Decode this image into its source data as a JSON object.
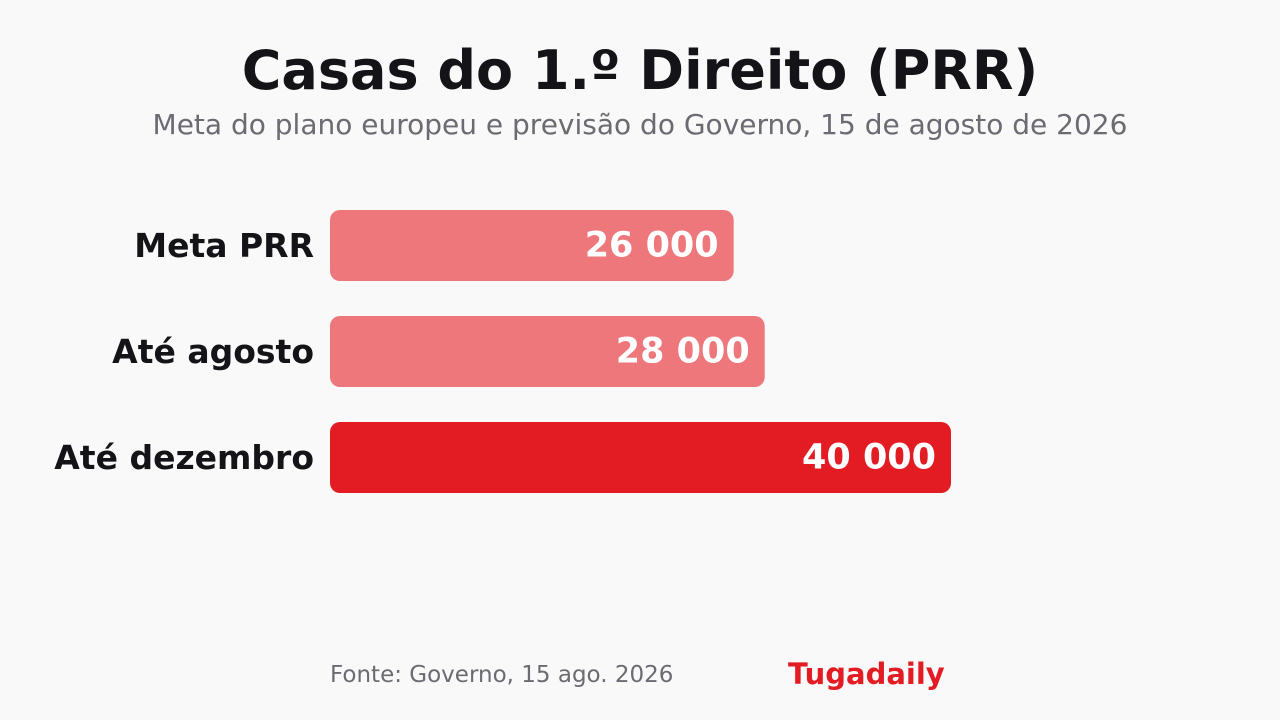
{
  "header": {
    "title": "Casas do 1.º Direito (PRR)",
    "subtitle": "Meta do plano europeu e previsão do Governo, 15 de agosto de 2026"
  },
  "footer": {
    "source": "Fonte: Governo, 15 ago. 2026",
    "brand": "Tugadaily"
  },
  "colors": {
    "highlight": "#e31b23",
    "muted": "#ed777b",
    "label_text": "#141418",
    "value_text": "#ffffff"
  },
  "chart_data": {
    "type": "bar",
    "orientation": "horizontal",
    "title": "Casas do 1.º Direito (PRR)",
    "subtitle": "Meta do plano europeu e previsão do Governo, 15 de agosto de 2026",
    "categories": [
      "Meta PRR",
      "Até agosto",
      "Até dezembro"
    ],
    "values": [
      26000,
      28000,
      40000
    ],
    "value_labels": [
      "26 000",
      "28 000",
      "40 000"
    ],
    "highlight_index": 2,
    "xlim": [
      0,
      40000
    ],
    "grid": false,
    "legend": "none",
    "xlabel": "",
    "ylabel": ""
  }
}
